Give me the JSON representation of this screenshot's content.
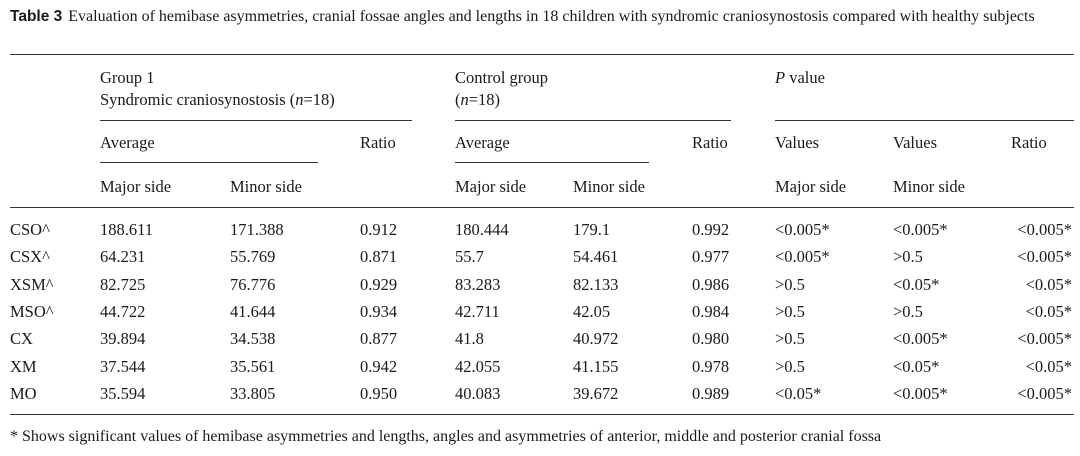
{
  "caption": {
    "label": "Table 3",
    "text": "Evaluation of hemibase asymmetries, cranial fossae angles and lengths in 18 children with syndromic craniosynostosis compared with healthy subjects"
  },
  "headers": {
    "group1_line1": "Group 1",
    "group1_line2_pre": "Syndromic craniosynostosis (",
    "group1_n": "n",
    "group1_line2_post": "=18)",
    "control_line1": "Control group",
    "control_pre": "(",
    "control_n": "n",
    "control_post": "=18)",
    "p_italic": "P",
    "p_rest": " value",
    "average": "Average",
    "ratio": "Ratio",
    "values": "Values",
    "major_side": "Major side",
    "minor_side": "Minor side"
  },
  "rows": [
    {
      "label": "CSO^",
      "g1_major": "188.611",
      "g1_minor": "171.388",
      "g1_ratio": "0.912",
      "c_major": "180.444",
      "c_minor": "179.1",
      "c_ratio": "0.992",
      "p_major": "<0.005*",
      "p_minor": "<0.005*",
      "p_ratio": "<0.005*"
    },
    {
      "label": "CSX^",
      "g1_major": "64.231",
      "g1_minor": "55.769",
      "g1_ratio": "0.871",
      "c_major": "55.7",
      "c_minor": "54.461",
      "c_ratio": "0.977",
      "p_major": "<0.005*",
      "p_minor": ">0.5",
      "p_ratio": "<0.005*"
    },
    {
      "label": "XSM^",
      "g1_major": "82.725",
      "g1_minor": "76.776",
      "g1_ratio": "0.929",
      "c_major": "83.283",
      "c_minor": "82.133",
      "c_ratio": "0.986",
      "p_major": ">0.5",
      "p_minor": "<0.05*",
      "p_ratio": "<0.05*"
    },
    {
      "label": "MSO^",
      "g1_major": "44.722",
      "g1_minor": "41.644",
      "g1_ratio": "0.934",
      "c_major": "42.711",
      "c_minor": "42.05",
      "c_ratio": "0.984",
      "p_major": ">0.5",
      "p_minor": ">0.5",
      "p_ratio": "<0.05*"
    },
    {
      "label": "CX",
      "g1_major": "39.894",
      "g1_minor": "34.538",
      "g1_ratio": "0.877",
      "c_major": "41.8",
      "c_minor": "40.972",
      "c_ratio": "0.980",
      "p_major": ">0.5",
      "p_minor": "<0.005*",
      "p_ratio": "<0.005*"
    },
    {
      "label": "XM",
      "g1_major": "37.544",
      "g1_minor": "35.561",
      "g1_ratio": "0.942",
      "c_major": "42.055",
      "c_minor": "41.155",
      "c_ratio": "0.978",
      "p_major": ">0.5",
      "p_minor": "<0.05*",
      "p_ratio": "<0.05*"
    },
    {
      "label": "MO",
      "g1_major": "35.594",
      "g1_minor": "33.805",
      "g1_ratio": "0.950",
      "c_major": "40.083",
      "c_minor": "39.672",
      "c_ratio": "0.989",
      "p_major": "<0.05*",
      "p_minor": "<0.005*",
      "p_ratio": "<0.005*"
    }
  ],
  "footnote": "* Shows significant values of hemibase asymmetries and lengths, angles and asymmetries of anterior, middle and posterior cranial fossa"
}
